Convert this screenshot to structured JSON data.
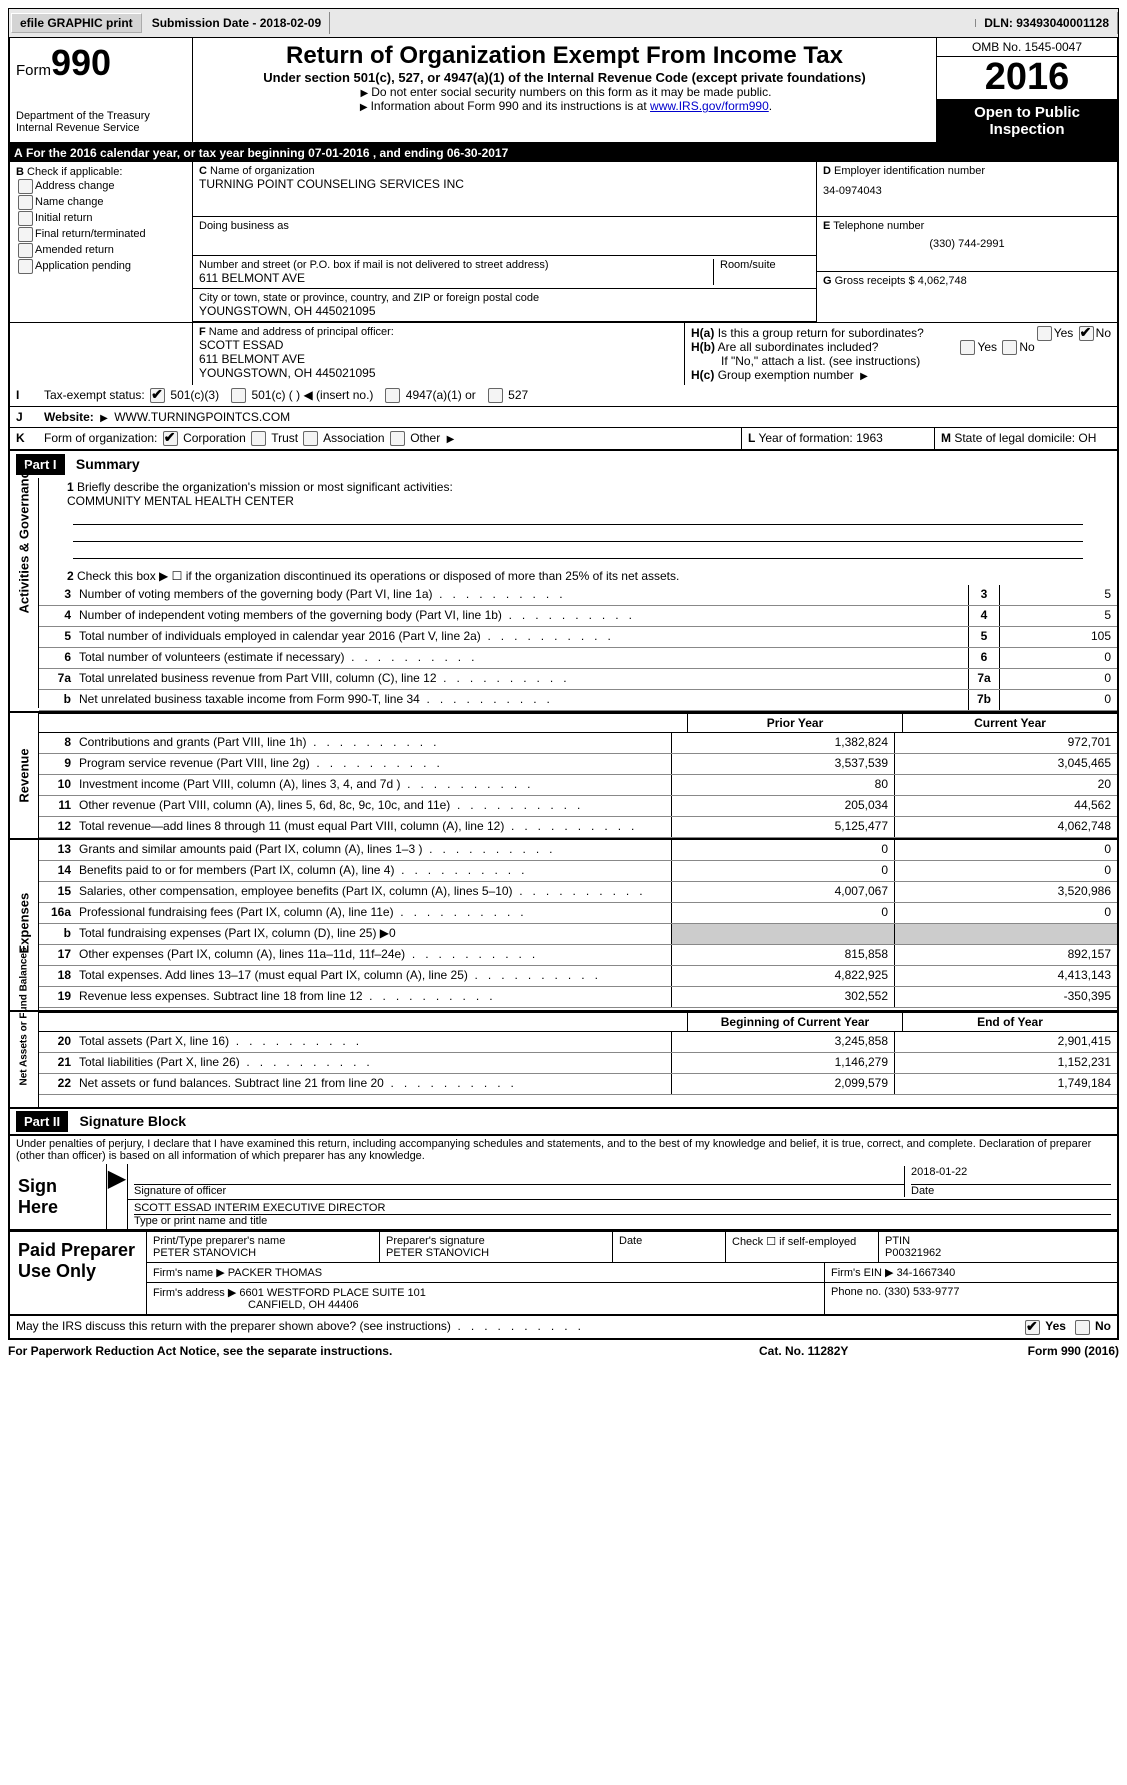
{
  "topbar": {
    "efile": "efile GRAPHIC print",
    "submission_label": "Submission Date",
    "submission_date": "2018-02-09",
    "dln_label": "DLN:",
    "dln": "93493040001128"
  },
  "header": {
    "form_label": "Form",
    "form_number": "990",
    "dept": "Department of the Treasury",
    "irs": "Internal Revenue Service",
    "title": "Return of Organization Exempt From Income Tax",
    "sub": "Under section 501(c), 527, or 4947(a)(1) of the Internal Revenue Code (except private foundations)",
    "note1": "Do not enter social security numbers on this form as it may be made public.",
    "note2_pre": "Information about Form 990 and its instructions is at ",
    "note2_link": "www.IRS.gov/form990",
    "omb": "OMB No. 1545-0047",
    "year": "2016",
    "inspection": "Open to Public Inspection"
  },
  "row_a": {
    "text_pre": "For the 2016 calendar year, or tax year beginning ",
    "begin": "07-01-2016",
    "mid": " , and ending ",
    "end": "06-30-2017"
  },
  "section_b": {
    "label": "Check if applicable:",
    "items": [
      "Address change",
      "Name change",
      "Initial return",
      "Final return/terminated",
      "Amended return",
      "Application pending"
    ]
  },
  "section_c": {
    "name_label": "Name of organization",
    "name": "TURNING POINT COUNSELING SERVICES INC",
    "dba_label": "Doing business as",
    "dba": "",
    "street_label": "Number and street (or P.O. box if mail is not delivered to street address)",
    "room_label": "Room/suite",
    "street": "611 BELMONT AVE",
    "city_label": "City or town, state or province, country, and ZIP or foreign postal code",
    "city": "YOUNGSTOWN, OH  445021095",
    "f_label": "Name and address of principal officer:",
    "f_name": "SCOTT ESSAD",
    "f_addr1": "611 BELMONT AVE",
    "f_addr2": "YOUNGSTOWN, OH  445021095"
  },
  "section_d": {
    "ein_label": "Employer identification number",
    "ein": "34-0974043",
    "phone_label": "Telephone number",
    "phone": "(330) 744-2991",
    "gross_label": "Gross receipts $",
    "gross": "4,062,748"
  },
  "section_h": {
    "a_label": "Is this a group return for subordinates?",
    "b_label": "Are all subordinates included?",
    "b_note": "If \"No,\" attach a list. (see instructions)",
    "c_label": "Group exemption number",
    "yes": "Yes",
    "no": "No"
  },
  "row_i": {
    "label": "Tax-exempt status:",
    "opts": [
      "501(c)(3)",
      "501(c) (  )",
      "(insert no.)",
      "4947(a)(1) or",
      "527"
    ]
  },
  "row_j": {
    "label": "Website:",
    "value": "WWW.TURNINGPOINTCS.COM"
  },
  "row_k": {
    "label": "Form of organization:",
    "opts": [
      "Corporation",
      "Trust",
      "Association",
      "Other"
    ]
  },
  "row_l": {
    "label": "Year of formation:",
    "value": "1963"
  },
  "row_m": {
    "label": "State of legal domicile:",
    "value": "OH"
  },
  "part1": {
    "header": "Part I",
    "title": "Summary",
    "line1_label": "Briefly describe the organization's mission or most significant activities:",
    "line1_value": "COMMUNITY MENTAL HEALTH CENTER",
    "line2": "Check this box ▶ ☐  if the organization discontinued its operations or disposed of more than 25% of its net assets.",
    "prior_year": "Prior Year",
    "current_year": "Current Year",
    "bocy": "Beginning of Current Year",
    "eoy": "End of Year"
  },
  "governance_lines": [
    {
      "n": "3",
      "desc": "Number of voting members of the governing body (Part VI, line 1a)",
      "box": "3",
      "val": "5"
    },
    {
      "n": "4",
      "desc": "Number of independent voting members of the governing body (Part VI, line 1b)",
      "box": "4",
      "val": "5"
    },
    {
      "n": "5",
      "desc": "Total number of individuals employed in calendar year 2016 (Part V, line 2a)",
      "box": "5",
      "val": "105"
    },
    {
      "n": "6",
      "desc": "Total number of volunteers (estimate if necessary)",
      "box": "6",
      "val": "0"
    },
    {
      "n": "7a",
      "desc": "Total unrelated business revenue from Part VIII, column (C), line 12",
      "box": "7a",
      "val": "0"
    },
    {
      "n": "b",
      "desc": "Net unrelated business taxable income from Form 990-T, line 34",
      "box": "7b",
      "val": "0"
    }
  ],
  "revenue_lines": [
    {
      "n": "8",
      "desc": "Contributions and grants (Part VIII, line 1h)",
      "py": "1,382,824",
      "cy": "972,701"
    },
    {
      "n": "9",
      "desc": "Program service revenue (Part VIII, line 2g)",
      "py": "3,537,539",
      "cy": "3,045,465"
    },
    {
      "n": "10",
      "desc": "Investment income (Part VIII, column (A), lines 3, 4, and 7d )",
      "py": "80",
      "cy": "20"
    },
    {
      "n": "11",
      "desc": "Other revenue (Part VIII, column (A), lines 5, 6d, 8c, 9c, 10c, and 11e)",
      "py": "205,034",
      "cy": "44,562"
    },
    {
      "n": "12",
      "desc": "Total revenue—add lines 8 through 11 (must equal Part VIII, column (A), line 12)",
      "py": "5,125,477",
      "cy": "4,062,748"
    }
  ],
  "expense_lines": [
    {
      "n": "13",
      "desc": "Grants and similar amounts paid (Part IX, column (A), lines 1–3 )",
      "py": "0",
      "cy": "0"
    },
    {
      "n": "14",
      "desc": "Benefits paid to or for members (Part IX, column (A), line 4)",
      "py": "0",
      "cy": "0"
    },
    {
      "n": "15",
      "desc": "Salaries, other compensation, employee benefits (Part IX, column (A), lines 5–10)",
      "py": "4,007,067",
      "cy": "3,520,986"
    },
    {
      "n": "16a",
      "desc": "Professional fundraising fees (Part IX, column (A), line 11e)",
      "py": "0",
      "cy": "0"
    },
    {
      "n": "b",
      "desc": "Total fundraising expenses (Part IX, column (D), line 25) ▶0",
      "py": "",
      "cy": ""
    },
    {
      "n": "17",
      "desc": "Other expenses (Part IX, column (A), lines 11a–11d, 11f–24e)",
      "py": "815,858",
      "cy": "892,157"
    },
    {
      "n": "18",
      "desc": "Total expenses. Add lines 13–17 (must equal Part IX, column (A), line 25)",
      "py": "4,822,925",
      "cy": "4,413,143"
    },
    {
      "n": "19",
      "desc": "Revenue less expenses. Subtract line 18 from line 12",
      "py": "302,552",
      "cy": "-350,395"
    }
  ],
  "netassets_lines": [
    {
      "n": "20",
      "desc": "Total assets (Part X, line 16)",
      "py": "3,245,858",
      "cy": "2,901,415"
    },
    {
      "n": "21",
      "desc": "Total liabilities (Part X, line 26)",
      "py": "1,146,279",
      "cy": "1,152,231"
    },
    {
      "n": "22",
      "desc": "Net assets or fund balances. Subtract line 21 from line 20",
      "py": "2,099,579",
      "cy": "1,749,184"
    }
  ],
  "vtabs": {
    "gov": "Activities & Governance",
    "rev": "Revenue",
    "exp": "Expenses",
    "net": "Net Assets or Fund Balances"
  },
  "part2": {
    "header": "Part II",
    "title": "Signature Block",
    "perjury": "Under penalties of perjury, I declare that I have examined this return, including accompanying schedules and statements, and to the best of my knowledge and belief, it is true, correct, and complete. Declaration of preparer (other than officer) is based on all information of which preparer has any knowledge."
  },
  "sign": {
    "label": "Sign Here",
    "sig_label": "Signature of officer",
    "date_label": "Date",
    "date": "2018-01-22",
    "name": "SCOTT ESSAD  INTERIM EXECUTIVE DIRECTOR",
    "name_label": "Type or print name and title"
  },
  "preparer": {
    "label": "Paid Preparer Use Only",
    "print_label": "Print/Type preparer's name",
    "print_name": "PETER STANOVICH",
    "sig_label": "Preparer's signature",
    "sig_name": "PETER STANOVICH",
    "date_label": "Date",
    "check_label": "Check ☐ if self-employed",
    "ptin_label": "PTIN",
    "ptin": "P00321962",
    "firm_name_label": "Firm's name   ▶",
    "firm_name": "PACKER THOMAS",
    "firm_ein_label": "Firm's EIN ▶",
    "firm_ein": "34-1667340",
    "firm_addr_label": "Firm's address ▶",
    "firm_addr1": "6601 WESTFORD PLACE SUITE 101",
    "firm_addr2": "CANFIELD, OH  44406",
    "phone_label": "Phone no.",
    "phone": "(330) 533-9777"
  },
  "discuss": {
    "text": "May the IRS discuss this return with the preparer shown above? (see instructions)",
    "yes": "Yes",
    "no": "No"
  },
  "footer": {
    "left": "For Paperwork Reduction Act Notice, see the separate instructions.",
    "mid": "Cat. No. 11282Y",
    "right": "Form 990 (2016)"
  },
  "letters": {
    "A": "A",
    "B": "B",
    "C": "C",
    "D": "D",
    "E": "E",
    "F": "F",
    "G": "G",
    "H": "H",
    "I": "I",
    "J": "J",
    "K": "K",
    "L": "L",
    "M": "M",
    "Ha": "H(a)",
    "Hb": "H(b)",
    "Hc": "H(c)"
  }
}
